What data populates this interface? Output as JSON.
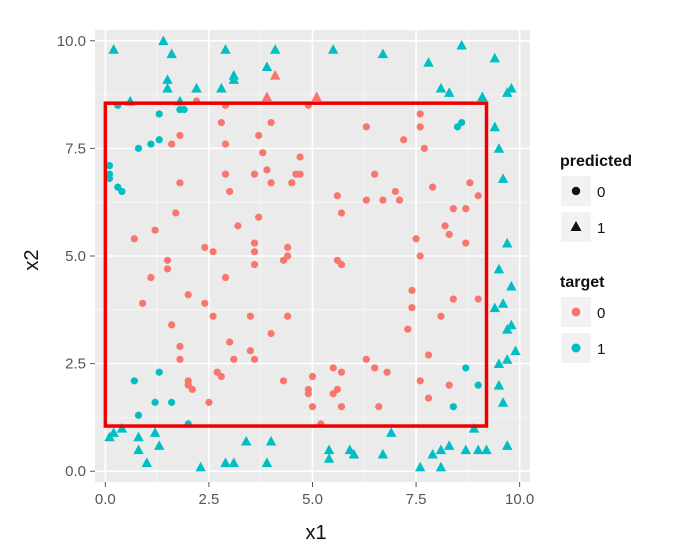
{
  "chart_data": {
    "type": "scatter",
    "title": "",
    "xlabel": "x1",
    "ylabel": "x2",
    "xlim": [
      -0.25,
      10.25
    ],
    "ylim": [
      -0.25,
      10.25
    ],
    "x_ticks": [
      0.0,
      2.5,
      5.0,
      7.5,
      10.0
    ],
    "y_ticks": [
      0.0,
      2.5,
      5.0,
      7.5,
      10.0
    ],
    "x_tick_labels": [
      "0.0",
      "2.5",
      "5.0",
      "7.5",
      "10.0"
    ],
    "y_tick_labels": [
      "0.0",
      "2.5",
      "5.0",
      "7.5",
      "10.0"
    ],
    "grid": true,
    "background": "#ebebeb",
    "colors": {
      "target_0": "#f8766d",
      "target_1": "#00bfc4",
      "box": "#ee0000"
    },
    "box": {
      "x0": 0.0,
      "y0": 1.05,
      "x1": 9.2,
      "y1": 8.55
    },
    "legend": {
      "placement": "right",
      "predicted": {
        "title": "predicted",
        "entries": [
          "0",
          "1"
        ]
      },
      "target": {
        "title": "target",
        "entries": [
          "0",
          "1"
        ]
      }
    },
    "points": [
      {
        "x": 0.2,
        "y": 9.8,
        "p": 1,
        "t": 1
      },
      {
        "x": 1.4,
        "y": 10.0,
        "p": 1,
        "t": 1
      },
      {
        "x": 1.6,
        "y": 9.7,
        "p": 1,
        "t": 1
      },
      {
        "x": 2.9,
        "y": 9.8,
        "p": 1,
        "t": 1
      },
      {
        "x": 4.1,
        "y": 9.8,
        "p": 1,
        "t": 1
      },
      {
        "x": 5.5,
        "y": 9.8,
        "p": 1,
        "t": 1
      },
      {
        "x": 6.7,
        "y": 9.7,
        "p": 1,
        "t": 1
      },
      {
        "x": 7.8,
        "y": 9.5,
        "p": 1,
        "t": 1
      },
      {
        "x": 8.6,
        "y": 9.9,
        "p": 1,
        "t": 1
      },
      {
        "x": 9.4,
        "y": 9.6,
        "p": 1,
        "t": 1
      },
      {
        "x": 3.1,
        "y": 9.2,
        "p": 1,
        "t": 1
      },
      {
        "x": 3.9,
        "y": 9.4,
        "p": 1,
        "t": 1
      },
      {
        "x": 4.1,
        "y": 9.2,
        "p": 1,
        "t": 0
      },
      {
        "x": 1.5,
        "y": 9.1,
        "p": 1,
        "t": 1
      },
      {
        "x": 2.2,
        "y": 8.9,
        "p": 1,
        "t": 1
      },
      {
        "x": 3.1,
        "y": 9.1,
        "p": 1,
        "t": 1
      },
      {
        "x": 8.1,
        "y": 8.9,
        "p": 1,
        "t": 1
      },
      {
        "x": 8.3,
        "y": 8.8,
        "p": 1,
        "t": 1
      },
      {
        "x": 9.7,
        "y": 8.8,
        "p": 1,
        "t": 1
      },
      {
        "x": 9.8,
        "y": 8.9,
        "p": 1,
        "t": 1
      },
      {
        "x": 9.1,
        "y": 8.7,
        "p": 1,
        "t": 1
      },
      {
        "x": 1.5,
        "y": 8.9,
        "p": 1,
        "t": 1
      },
      {
        "x": 0.6,
        "y": 8.6,
        "p": 1,
        "t": 1
      },
      {
        "x": 1.8,
        "y": 8.6,
        "p": 1,
        "t": 1
      },
      {
        "x": 2.8,
        "y": 8.9,
        "p": 1,
        "t": 1
      },
      {
        "x": 3.9,
        "y": 8.7,
        "p": 1,
        "t": 0
      },
      {
        "x": 5.1,
        "y": 8.7,
        "p": 1,
        "t": 0
      },
      {
        "x": 9.4,
        "y": 8.0,
        "p": 1,
        "t": 1
      },
      {
        "x": 9.5,
        "y": 7.5,
        "p": 1,
        "t": 1
      },
      {
        "x": 9.6,
        "y": 6.8,
        "p": 1,
        "t": 1
      },
      {
        "x": 9.7,
        "y": 5.3,
        "p": 1,
        "t": 1
      },
      {
        "x": 9.5,
        "y": 4.7,
        "p": 1,
        "t": 1
      },
      {
        "x": 9.6,
        "y": 3.9,
        "p": 1,
        "t": 1
      },
      {
        "x": 9.8,
        "y": 4.3,
        "p": 1,
        "t": 1
      },
      {
        "x": 9.4,
        "y": 3.8,
        "p": 1,
        "t": 1
      },
      {
        "x": 9.8,
        "y": 3.4,
        "p": 1,
        "t": 1
      },
      {
        "x": 9.7,
        "y": 3.3,
        "p": 1,
        "t": 1
      },
      {
        "x": 9.9,
        "y": 2.8,
        "p": 1,
        "t": 1
      },
      {
        "x": 9.7,
        "y": 2.6,
        "p": 1,
        "t": 1
      },
      {
        "x": 9.5,
        "y": 2.5,
        "p": 1,
        "t": 1
      },
      {
        "x": 9.5,
        "y": 2.0,
        "p": 1,
        "t": 1
      },
      {
        "x": 9.6,
        "y": 1.6,
        "p": 1,
        "t": 1
      },
      {
        "x": 0.1,
        "y": 0.8,
        "p": 1,
        "t": 1
      },
      {
        "x": 0.2,
        "y": 0.9,
        "p": 1,
        "t": 1
      },
      {
        "x": 0.4,
        "y": 1.0,
        "p": 1,
        "t": 1
      },
      {
        "x": 0.8,
        "y": 0.8,
        "p": 1,
        "t": 1
      },
      {
        "x": 1.2,
        "y": 0.9,
        "p": 1,
        "t": 1
      },
      {
        "x": 0.8,
        "y": 0.5,
        "p": 1,
        "t": 1
      },
      {
        "x": 1.3,
        "y": 0.6,
        "p": 1,
        "t": 1
      },
      {
        "x": 1.0,
        "y": 0.2,
        "p": 1,
        "t": 1
      },
      {
        "x": 2.3,
        "y": 0.1,
        "p": 1,
        "t": 1
      },
      {
        "x": 2.9,
        "y": 0.2,
        "p": 1,
        "t": 1
      },
      {
        "x": 3.1,
        "y": 0.2,
        "p": 1,
        "t": 1
      },
      {
        "x": 3.4,
        "y": 0.7,
        "p": 1,
        "t": 1
      },
      {
        "x": 3.9,
        "y": 0.2,
        "p": 1,
        "t": 1
      },
      {
        "x": 4.0,
        "y": 0.7,
        "p": 1,
        "t": 1
      },
      {
        "x": 5.4,
        "y": 0.5,
        "p": 1,
        "t": 1
      },
      {
        "x": 5.4,
        "y": 0.3,
        "p": 1,
        "t": 1
      },
      {
        "x": 5.9,
        "y": 0.5,
        "p": 1,
        "t": 1
      },
      {
        "x": 6.0,
        "y": 0.4,
        "p": 1,
        "t": 1
      },
      {
        "x": 6.7,
        "y": 0.4,
        "p": 1,
        "t": 1
      },
      {
        "x": 6.9,
        "y": 0.9,
        "p": 1,
        "t": 1
      },
      {
        "x": 7.6,
        "y": 0.1,
        "p": 1,
        "t": 1
      },
      {
        "x": 7.9,
        "y": 0.4,
        "p": 1,
        "t": 1
      },
      {
        "x": 8.1,
        "y": 0.5,
        "p": 1,
        "t": 1
      },
      {
        "x": 8.1,
        "y": 0.1,
        "p": 1,
        "t": 1
      },
      {
        "x": 8.3,
        "y": 0.6,
        "p": 1,
        "t": 1
      },
      {
        "x": 8.7,
        "y": 0.5,
        "p": 1,
        "t": 1
      },
      {
        "x": 8.9,
        "y": 1.0,
        "p": 1,
        "t": 1
      },
      {
        "x": 9.2,
        "y": 0.5,
        "p": 1,
        "t": 1
      },
      {
        "x": 9.0,
        "y": 0.5,
        "p": 1,
        "t": 1
      },
      {
        "x": 9.7,
        "y": 0.6,
        "p": 1,
        "t": 1
      },
      {
        "x": 0.1,
        "y": 7.1,
        "p": 0,
        "t": 1
      },
      {
        "x": 0.1,
        "y": 6.9,
        "p": 0,
        "t": 1
      },
      {
        "x": 0.1,
        "y": 6.8,
        "p": 0,
        "t": 1
      },
      {
        "x": 0.3,
        "y": 6.6,
        "p": 0,
        "t": 1
      },
      {
        "x": 0.4,
        "y": 6.5,
        "p": 0,
        "t": 1
      },
      {
        "x": 0.3,
        "y": 8.5,
        "p": 0,
        "t": 1
      },
      {
        "x": 0.8,
        "y": 7.5,
        "p": 0,
        "t": 1
      },
      {
        "x": 1.1,
        "y": 7.6,
        "p": 0,
        "t": 1
      },
      {
        "x": 1.3,
        "y": 7.7,
        "p": 0,
        "t": 1
      },
      {
        "x": 1.3,
        "y": 8.3,
        "p": 0,
        "t": 1
      },
      {
        "x": 1.8,
        "y": 8.4,
        "p": 0,
        "t": 1
      },
      {
        "x": 1.9,
        "y": 8.4,
        "p": 0,
        "t": 1
      },
      {
        "x": 8.5,
        "y": 8.0,
        "p": 0,
        "t": 1
      },
      {
        "x": 8.6,
        "y": 8.1,
        "p": 0,
        "t": 1
      },
      {
        "x": 0.7,
        "y": 2.1,
        "p": 0,
        "t": 1
      },
      {
        "x": 1.3,
        "y": 2.3,
        "p": 0,
        "t": 1
      },
      {
        "x": 1.2,
        "y": 1.6,
        "p": 0,
        "t": 1
      },
      {
        "x": 1.6,
        "y": 1.6,
        "p": 0,
        "t": 1
      },
      {
        "x": 0.8,
        "y": 1.3,
        "p": 0,
        "t": 1
      },
      {
        "x": 2.0,
        "y": 1.1,
        "p": 0,
        "t": 1
      },
      {
        "x": 8.7,
        "y": 2.4,
        "p": 0,
        "t": 1
      },
      {
        "x": 8.4,
        "y": 1.5,
        "p": 0,
        "t": 1
      },
      {
        "x": 9.0,
        "y": 2.0,
        "p": 0,
        "t": 1
      },
      {
        "x": 0.7,
        "y": 5.4,
        "p": 0,
        "t": 0
      },
      {
        "x": 0.9,
        "y": 3.9,
        "p": 0,
        "t": 0
      },
      {
        "x": 1.1,
        "y": 4.5,
        "p": 0,
        "t": 0
      },
      {
        "x": 1.2,
        "y": 5.6,
        "p": 0,
        "t": 0
      },
      {
        "x": 1.5,
        "y": 4.9,
        "p": 0,
        "t": 0
      },
      {
        "x": 1.5,
        "y": 4.7,
        "p": 0,
        "t": 0
      },
      {
        "x": 1.6,
        "y": 3.4,
        "p": 0,
        "t": 0
      },
      {
        "x": 1.6,
        "y": 7.6,
        "p": 0,
        "t": 0
      },
      {
        "x": 1.7,
        "y": 6.0,
        "p": 0,
        "t": 0
      },
      {
        "x": 1.8,
        "y": 6.7,
        "p": 0,
        "t": 0
      },
      {
        "x": 1.8,
        "y": 2.9,
        "p": 0,
        "t": 0
      },
      {
        "x": 1.8,
        "y": 2.6,
        "p": 0,
        "t": 0
      },
      {
        "x": 1.8,
        "y": 7.8,
        "p": 0,
        "t": 0
      },
      {
        "x": 2.0,
        "y": 4.1,
        "p": 0,
        "t": 0
      },
      {
        "x": 2.0,
        "y": 2.1,
        "p": 0,
        "t": 0
      },
      {
        "x": 2.0,
        "y": 2.0,
        "p": 0,
        "t": 0
      },
      {
        "x": 2.1,
        "y": 1.9,
        "p": 0,
        "t": 0
      },
      {
        "x": 2.4,
        "y": 5.2,
        "p": 0,
        "t": 0
      },
      {
        "x": 2.4,
        "y": 3.9,
        "p": 0,
        "t": 0
      },
      {
        "x": 2.5,
        "y": 1.6,
        "p": 0,
        "t": 0
      },
      {
        "x": 2.6,
        "y": 5.1,
        "p": 0,
        "t": 0
      },
      {
        "x": 2.6,
        "y": 3.6,
        "p": 0,
        "t": 0
      },
      {
        "x": 2.7,
        "y": 2.3,
        "p": 0,
        "t": 0
      },
      {
        "x": 2.8,
        "y": 8.1,
        "p": 0,
        "t": 0
      },
      {
        "x": 2.8,
        "y": 2.2,
        "p": 0,
        "t": 0
      },
      {
        "x": 2.9,
        "y": 7.6,
        "p": 0,
        "t": 0
      },
      {
        "x": 2.9,
        "y": 6.9,
        "p": 0,
        "t": 0
      },
      {
        "x": 2.9,
        "y": 4.5,
        "p": 0,
        "t": 0
      },
      {
        "x": 2.9,
        "y": 8.5,
        "p": 0,
        "t": 0
      },
      {
        "x": 3.0,
        "y": 6.5,
        "p": 0,
        "t": 0
      },
      {
        "x": 3.0,
        "y": 3.0,
        "p": 0,
        "t": 0
      },
      {
        "x": 3.1,
        "y": 2.6,
        "p": 0,
        "t": 0
      },
      {
        "x": 3.2,
        "y": 5.7,
        "p": 0,
        "t": 0
      },
      {
        "x": 3.5,
        "y": 3.6,
        "p": 0,
        "t": 0
      },
      {
        "x": 3.5,
        "y": 2.8,
        "p": 0,
        "t": 0
      },
      {
        "x": 3.6,
        "y": 6.9,
        "p": 0,
        "t": 0
      },
      {
        "x": 3.6,
        "y": 5.3,
        "p": 0,
        "t": 0
      },
      {
        "x": 3.6,
        "y": 5.1,
        "p": 0,
        "t": 0
      },
      {
        "x": 3.6,
        "y": 4.8,
        "p": 0,
        "t": 0
      },
      {
        "x": 3.6,
        "y": 2.6,
        "p": 0,
        "t": 0
      },
      {
        "x": 3.7,
        "y": 5.9,
        "p": 0,
        "t": 0
      },
      {
        "x": 3.7,
        "y": 7.8,
        "p": 0,
        "t": 0
      },
      {
        "x": 3.8,
        "y": 7.4,
        "p": 0,
        "t": 0
      },
      {
        "x": 3.9,
        "y": 7.0,
        "p": 0,
        "t": 0
      },
      {
        "x": 4.0,
        "y": 6.7,
        "p": 0,
        "t": 0
      },
      {
        "x": 4.0,
        "y": 3.2,
        "p": 0,
        "t": 0
      },
      {
        "x": 4.0,
        "y": 8.1,
        "p": 0,
        "t": 0
      },
      {
        "x": 4.3,
        "y": 2.1,
        "p": 0,
        "t": 0
      },
      {
        "x": 4.3,
        "y": 4.9,
        "p": 0,
        "t": 0
      },
      {
        "x": 4.4,
        "y": 5.2,
        "p": 0,
        "t": 0
      },
      {
        "x": 4.4,
        "y": 5.0,
        "p": 0,
        "t": 0
      },
      {
        "x": 4.4,
        "y": 3.6,
        "p": 0,
        "t": 0
      },
      {
        "x": 4.5,
        "y": 6.7,
        "p": 0,
        "t": 0
      },
      {
        "x": 4.6,
        "y": 6.9,
        "p": 0,
        "t": 0
      },
      {
        "x": 4.7,
        "y": 6.9,
        "p": 0,
        "t": 0
      },
      {
        "x": 4.7,
        "y": 7.3,
        "p": 0,
        "t": 0
      },
      {
        "x": 4.9,
        "y": 1.9,
        "p": 0,
        "t": 0
      },
      {
        "x": 4.9,
        "y": 1.8,
        "p": 0,
        "t": 0
      },
      {
        "x": 4.9,
        "y": 8.5,
        "p": 0,
        "t": 0
      },
      {
        "x": 5.0,
        "y": 2.2,
        "p": 0,
        "t": 0
      },
      {
        "x": 5.0,
        "y": 1.5,
        "p": 0,
        "t": 0
      },
      {
        "x": 5.2,
        "y": 1.1,
        "p": 0,
        "t": 0
      },
      {
        "x": 5.5,
        "y": 2.4,
        "p": 0,
        "t": 0
      },
      {
        "x": 5.5,
        "y": 1.8,
        "p": 0,
        "t": 0
      },
      {
        "x": 5.6,
        "y": 6.4,
        "p": 0,
        "t": 0
      },
      {
        "x": 5.6,
        "y": 4.9,
        "p": 0,
        "t": 0
      },
      {
        "x": 5.7,
        "y": 6.0,
        "p": 0,
        "t": 0
      },
      {
        "x": 5.7,
        "y": 4.8,
        "p": 0,
        "t": 0
      },
      {
        "x": 5.7,
        "y": 2.3,
        "p": 0,
        "t": 0
      },
      {
        "x": 5.7,
        "y": 1.5,
        "p": 0,
        "t": 0
      },
      {
        "x": 5.6,
        "y": 1.9,
        "p": 0,
        "t": 0
      },
      {
        "x": 6.3,
        "y": 8.0,
        "p": 0,
        "t": 0
      },
      {
        "x": 6.3,
        "y": 6.3,
        "p": 0,
        "t": 0
      },
      {
        "x": 6.3,
        "y": 2.6,
        "p": 0,
        "t": 0
      },
      {
        "x": 6.5,
        "y": 6.9,
        "p": 0,
        "t": 0
      },
      {
        "x": 6.5,
        "y": 2.4,
        "p": 0,
        "t": 0
      },
      {
        "x": 6.6,
        "y": 1.5,
        "p": 0,
        "t": 0
      },
      {
        "x": 6.7,
        "y": 6.3,
        "p": 0,
        "t": 0
      },
      {
        "x": 6.8,
        "y": 2.3,
        "p": 0,
        "t": 0
      },
      {
        "x": 7.0,
        "y": 6.5,
        "p": 0,
        "t": 0
      },
      {
        "x": 7.1,
        "y": 6.3,
        "p": 0,
        "t": 0
      },
      {
        "x": 7.2,
        "y": 7.7,
        "p": 0,
        "t": 0
      },
      {
        "x": 7.3,
        "y": 3.3,
        "p": 0,
        "t": 0
      },
      {
        "x": 7.4,
        "y": 3.8,
        "p": 0,
        "t": 0
      },
      {
        "x": 7.5,
        "y": 5.4,
        "p": 0,
        "t": 0
      },
      {
        "x": 7.6,
        "y": 8.3,
        "p": 0,
        "t": 0
      },
      {
        "x": 7.6,
        "y": 5.0,
        "p": 0,
        "t": 0
      },
      {
        "x": 7.6,
        "y": 2.1,
        "p": 0,
        "t": 0
      },
      {
        "x": 7.7,
        "y": 7.5,
        "p": 0,
        "t": 0
      },
      {
        "x": 7.8,
        "y": 2.7,
        "p": 0,
        "t": 0
      },
      {
        "x": 7.8,
        "y": 1.7,
        "p": 0,
        "t": 0
      },
      {
        "x": 7.9,
        "y": 6.6,
        "p": 0,
        "t": 0
      },
      {
        "x": 8.1,
        "y": 3.6,
        "p": 0,
        "t": 0
      },
      {
        "x": 8.2,
        "y": 5.7,
        "p": 0,
        "t": 0
      },
      {
        "x": 8.3,
        "y": 5.5,
        "p": 0,
        "t": 0
      },
      {
        "x": 8.3,
        "y": 2.0,
        "p": 0,
        "t": 0
      },
      {
        "x": 8.4,
        "y": 6.1,
        "p": 0,
        "t": 0
      },
      {
        "x": 8.4,
        "y": 4.0,
        "p": 0,
        "t": 0
      },
      {
        "x": 8.7,
        "y": 6.1,
        "p": 0,
        "t": 0
      },
      {
        "x": 8.7,
        "y": 5.3,
        "p": 0,
        "t": 0
      },
      {
        "x": 8.8,
        "y": 6.7,
        "p": 0,
        "t": 0
      },
      {
        "x": 9.0,
        "y": 6.4,
        "p": 0,
        "t": 0
      },
      {
        "x": 9.0,
        "y": 4.0,
        "p": 0,
        "t": 0
      },
      {
        "x": 7.4,
        "y": 4.2,
        "p": 0,
        "t": 0
      },
      {
        "x": 7.6,
        "y": 8.0,
        "p": 0,
        "t": 0
      },
      {
        "x": 2.2,
        "y": 8.6,
        "p": 0,
        "t": 0
      }
    ]
  }
}
